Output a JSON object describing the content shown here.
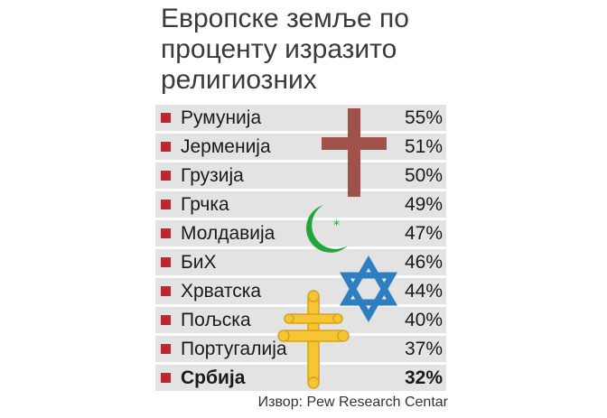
{
  "title_lines": [
    "Европске земље по",
    "проценту изразито",
    "религиозних"
  ],
  "source": "Извор: Pew Research Centar",
  "colors": {
    "bullet": "#c0272d",
    "row_bg": "#e3e3e3",
    "cross": "#a0524a",
    "crescent": "#22a63a",
    "star_of_david": "#2e7fc1",
    "orthodox_cross": "#f5c533"
  },
  "icons": [
    "latin-cross-icon",
    "crescent-star-icon",
    "star-of-david-icon",
    "orthodox-cross-icon"
  ],
  "chart_data": {
    "type": "table",
    "title": "Европске земље по проценту изразито религиозних",
    "categories": [
      "Румунија",
      "Јерменија",
      "Грузија",
      "Грчка",
      "Молдавија",
      "БиХ",
      "Хрватска",
      "Пољска",
      "Португалија",
      "Србија"
    ],
    "values": [
      55,
      51,
      50,
      49,
      47,
      46,
      44,
      40,
      37,
      32
    ],
    "labels": [
      "55%",
      "51%",
      "50%",
      "49%",
      "47%",
      "46%",
      "44%",
      "40%",
      "37%",
      "32%"
    ],
    "highlight": "Србија"
  }
}
